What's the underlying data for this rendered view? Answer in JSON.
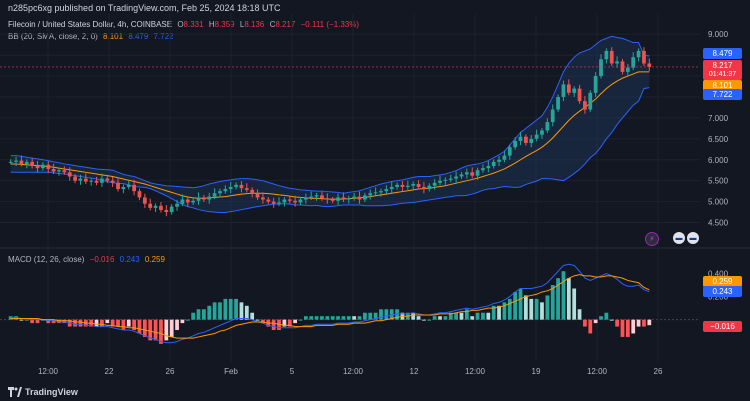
{
  "header": {
    "published": "n285pc6xg published on TradingView.com, Feb 25, 2024 18:18 UTC"
  },
  "symbol": {
    "name": "Filecoin / United States Dollar, 4h, COINBASE",
    "o_label": "O",
    "o_value": "8.331",
    "h_label": "H",
    "h_value": "8.359",
    "l_label": "L",
    "l_value": "8.136",
    "c_label": "C",
    "c_value": "8.217",
    "change": "−0.111 (−1.33%)"
  },
  "bb": {
    "label": "BB (20, SMA, close, 2, 0)",
    "basis": "8.101",
    "upper": "8.479",
    "lower": "7.722"
  },
  "macd": {
    "label": "MACD (12, 26, close)",
    "hist": "−0.016",
    "macd": "0.243",
    "signal": "0.259"
  },
  "price_tags": {
    "upper": "8.479",
    "close": "8.217",
    "countdown": "01:41:37",
    "basis": "8.101",
    "lower": "7.722"
  },
  "macd_tags": {
    "signal": "0.259",
    "macd": "0.243",
    "hist": "−0.016"
  },
  "footer": {
    "brand": "TradingView"
  },
  "colors": {
    "background": "#131722",
    "up": "#26a69a",
    "down": "#ef5350",
    "bb_upper": "#2962ff",
    "bb_basis": "#ff9800",
    "bb_fill": "#1e3a5f",
    "macd_line": "#2962ff",
    "signal_line": "#ff9800"
  },
  "icons": [
    "lightning-icon",
    "flag-icon-1",
    "flag-icon-2"
  ],
  "chart_data": [
    {
      "type": "candlestick",
      "title": "Filecoin / United States Dollar, 4h, COINBASE",
      "x_ticks": [
        "12:00",
        "22",
        "26",
        "Feb",
        "5",
        "12:00",
        "12",
        "12:00",
        "19",
        "12:00",
        "26"
      ],
      "y_ticks": [
        4.5,
        5.0,
        5.5,
        6.0,
        6.5,
        7.0,
        7.5,
        8.0,
        8.5,
        9.0
      ],
      "ylim": [
        4.25,
        9.1
      ],
      "close": [
        5.95,
        5.98,
        5.9,
        5.95,
        5.85,
        5.8,
        5.88,
        5.78,
        5.72,
        5.75,
        5.7,
        5.6,
        5.5,
        5.55,
        5.48,
        5.5,
        5.45,
        5.55,
        5.5,
        5.45,
        5.3,
        5.35,
        5.4,
        5.25,
        5.1,
        4.95,
        4.85,
        4.9,
        4.8,
        4.75,
        4.88,
        4.95,
        5.05,
        4.98,
        5.02,
        5.1,
        5.05,
        5.12,
        5.2,
        5.25,
        5.3,
        5.35,
        5.4,
        5.32,
        5.28,
        5.2,
        5.1,
        5.05,
        5.0,
        4.95,
        4.98,
        5.05,
        5.02,
        4.98,
        5.05,
        5.1,
        5.12,
        5.15,
        5.08,
        5.05,
        5.02,
        5.1,
        5.05,
        5.08,
        5.12,
        5.05,
        5.15,
        5.2,
        5.22,
        5.25,
        5.3,
        5.35,
        5.4,
        5.35,
        5.38,
        5.42,
        5.35,
        5.3,
        5.38,
        5.45,
        5.5,
        5.52,
        5.55,
        5.6,
        5.65,
        5.7,
        5.62,
        5.75,
        5.8,
        5.85,
        5.95,
        6.0,
        6.1,
        6.3,
        6.45,
        6.55,
        6.4,
        6.5,
        6.6,
        6.7,
        6.9,
        7.2,
        7.5,
        7.8,
        7.6,
        7.7,
        7.4,
        7.2,
        7.6,
        8.0,
        8.4,
        8.6,
        8.3,
        8.35,
        8.1,
        8.2,
        8.45,
        8.6,
        8.3,
        8.217
      ],
      "bb_upper": [
        6.1,
        6.1,
        6.08,
        6.06,
        6.04,
        6.02,
        6.0,
        5.98,
        5.95,
        5.93,
        5.9,
        5.88,
        5.86,
        5.84,
        5.82,
        5.8,
        5.78,
        5.77,
        5.76,
        5.75,
        5.7,
        5.65,
        5.62,
        5.6,
        5.55,
        5.5,
        5.45,
        5.42,
        5.4,
        5.38,
        5.37,
        5.36,
        5.35,
        5.34,
        5.33,
        5.35,
        5.38,
        5.42,
        5.45,
        5.48,
        5.5,
        5.52,
        5.54,
        5.55,
        5.55,
        5.54,
        5.52,
        5.5,
        5.46,
        5.42,
        5.38,
        5.35,
        5.32,
        5.3,
        5.28,
        5.27,
        5.26,
        5.25,
        5.25,
        5.24,
        5.23,
        5.22,
        5.2,
        5.22,
        5.24,
        5.26,
        5.3,
        5.34,
        5.38,
        5.42,
        5.45,
        5.48,
        5.5,
        5.52,
        5.55,
        5.58,
        5.6,
        5.6,
        5.6,
        5.62,
        5.64,
        5.66,
        5.7,
        5.74,
        5.8,
        5.85,
        5.88,
        5.9,
        5.93,
        5.98,
        6.05,
        6.12,
        6.2,
        6.35,
        6.5,
        6.65,
        6.75,
        6.85,
        6.95,
        7.05,
        7.25,
        7.5,
        7.8,
        8.1,
        8.3,
        8.45,
        8.55,
        8.6,
        8.65,
        8.75,
        8.85,
        8.9,
        8.95,
        8.92,
        8.9,
        8.85,
        8.8,
        8.8,
        8.5,
        8.479
      ],
      "bb_basis": [
        5.9,
        5.9,
        5.89,
        5.88,
        5.87,
        5.86,
        5.85,
        5.84,
        5.82,
        5.8,
        5.78,
        5.76,
        5.74,
        5.72,
        5.7,
        5.68,
        5.66,
        5.64,
        5.62,
        5.6,
        5.57,
        5.54,
        5.51,
        5.48,
        5.45,
        5.42,
        5.38,
        5.34,
        5.3,
        5.26,
        5.22,
        5.18,
        5.14,
        5.11,
        5.09,
        5.08,
        5.08,
        5.09,
        5.1,
        5.11,
        5.12,
        5.14,
        5.16,
        5.18,
        5.19,
        5.2,
        5.2,
        5.2,
        5.19,
        5.18,
        5.16,
        5.15,
        5.13,
        5.11,
        5.1,
        5.09,
        5.08,
        5.08,
        5.07,
        5.06,
        5.06,
        5.06,
        5.06,
        5.07,
        5.08,
        5.09,
        5.1,
        5.12,
        5.14,
        5.16,
        5.18,
        5.2,
        5.22,
        5.24,
        5.26,
        5.28,
        5.3,
        5.31,
        5.32,
        5.34,
        5.36,
        5.38,
        5.41,
        5.44,
        5.47,
        5.5,
        5.53,
        5.56,
        5.6,
        5.64,
        5.68,
        5.73,
        5.78,
        5.85,
        5.92,
        6.0,
        6.08,
        6.15,
        6.22,
        6.3,
        6.4,
        6.52,
        6.66,
        6.8,
        6.94,
        7.06,
        7.16,
        7.25,
        7.35,
        7.45,
        7.58,
        7.7,
        7.8,
        7.88,
        7.95,
        8.0,
        8.05,
        8.1,
        8.1,
        8.101
      ],
      "bb_lower": [
        5.7,
        5.7,
        5.7,
        5.7,
        5.7,
        5.7,
        5.7,
        5.7,
        5.69,
        5.67,
        5.66,
        5.64,
        5.62,
        5.6,
        5.58,
        5.56,
        5.54,
        5.51,
        5.48,
        5.45,
        5.44,
        5.43,
        5.4,
        5.36,
        5.35,
        5.34,
        5.31,
        5.26,
        5.2,
        5.14,
        5.07,
        5.0,
        4.93,
        4.88,
        4.85,
        4.81,
        4.78,
        4.76,
        4.75,
        4.74,
        4.74,
        4.76,
        4.78,
        4.81,
        4.83,
        4.86,
        4.88,
        4.9,
        4.92,
        4.94,
        4.94,
        4.95,
        4.94,
        4.92,
        4.92,
        4.91,
        4.9,
        4.91,
        4.89,
        4.88,
        4.89,
        4.9,
        4.92,
        4.92,
        4.92,
        4.92,
        4.9,
        4.9,
        4.9,
        4.9,
        4.91,
        4.92,
        4.94,
        4.96,
        4.97,
        4.98,
        5.0,
        5.02,
        5.04,
        5.06,
        5.08,
        5.1,
        5.12,
        5.14,
        5.14,
        5.15,
        5.18,
        5.22,
        5.27,
        5.3,
        5.31,
        5.34,
        5.36,
        5.35,
        5.34,
        5.35,
        5.41,
        5.45,
        5.49,
        5.55,
        5.55,
        5.54,
        5.52,
        5.5,
        5.58,
        5.67,
        5.77,
        5.9,
        6.05,
        6.15,
        6.31,
        6.5,
        6.65,
        6.84,
        7.0,
        7.15,
        7.3,
        7.4,
        7.7,
        7.722
      ]
    },
    {
      "type": "macd",
      "title": "MACD (12, 26, close)",
      "y_ticks": [
        0.2,
        0.4
      ],
      "ylim": [
        -0.35,
        0.5
      ],
      "macd": [
        0.02,
        0.02,
        0.01,
        0.01,
        0.0,
        0.0,
        0.0,
        -0.01,
        -0.01,
        -0.02,
        -0.02,
        -0.03,
        -0.04,
        -0.04,
        -0.05,
        -0.05,
        -0.06,
        -0.06,
        -0.06,
        -0.07,
        -0.08,
        -0.09,
        -0.09,
        -0.1,
        -0.12,
        -0.14,
        -0.16,
        -0.17,
        -0.19,
        -0.2,
        -0.2,
        -0.19,
        -0.17,
        -0.16,
        -0.14,
        -0.12,
        -0.11,
        -0.09,
        -0.07,
        -0.05,
        -0.03,
        -0.01,
        0.01,
        0.01,
        0.01,
        0.0,
        -0.02,
        -0.03,
        -0.05,
        -0.06,
        -0.07,
        -0.07,
        -0.07,
        -0.07,
        -0.06,
        -0.05,
        -0.05,
        -0.04,
        -0.04,
        -0.04,
        -0.04,
        -0.03,
        -0.03,
        -0.03,
        -0.02,
        -0.02,
        -0.01,
        0.0,
        0.01,
        0.02,
        0.03,
        0.04,
        0.05,
        0.05,
        0.05,
        0.06,
        0.05,
        0.04,
        0.04,
        0.05,
        0.06,
        0.06,
        0.07,
        0.08,
        0.09,
        0.1,
        0.09,
        0.1,
        0.11,
        0.12,
        0.14,
        0.15,
        0.17,
        0.2,
        0.24,
        0.27,
        0.27,
        0.27,
        0.28,
        0.29,
        0.32,
        0.37,
        0.42,
        0.47,
        0.48,
        0.47,
        0.42,
        0.36,
        0.34,
        0.36,
        0.38,
        0.4,
        0.38,
        0.35,
        0.31,
        0.29,
        0.29,
        0.3,
        0.26,
        0.243
      ],
      "signal": [
        0.01,
        0.01,
        0.01,
        0.01,
        0.01,
        0.01,
        0.0,
        0.0,
        0.0,
        -0.01,
        -0.01,
        -0.01,
        -0.02,
        -0.02,
        -0.03,
        -0.03,
        -0.04,
        -0.04,
        -0.05,
        -0.05,
        -0.06,
        -0.06,
        -0.07,
        -0.07,
        -0.08,
        -0.09,
        -0.1,
        -0.11,
        -0.12,
        -0.14,
        -0.15,
        -0.16,
        -0.16,
        -0.16,
        -0.16,
        -0.15,
        -0.14,
        -0.13,
        -0.12,
        -0.1,
        -0.09,
        -0.07,
        -0.05,
        -0.04,
        -0.03,
        -0.02,
        -0.02,
        -0.02,
        -0.03,
        -0.03,
        -0.04,
        -0.05,
        -0.05,
        -0.06,
        -0.06,
        -0.06,
        -0.06,
        -0.05,
        -0.05,
        -0.05,
        -0.05,
        -0.04,
        -0.04,
        -0.04,
        -0.03,
        -0.03,
        -0.03,
        -0.02,
        -0.01,
        -0.01,
        0.0,
        0.01,
        0.02,
        0.03,
        0.03,
        0.04,
        0.04,
        0.04,
        0.04,
        0.04,
        0.05,
        0.05,
        0.05,
        0.06,
        0.07,
        0.07,
        0.08,
        0.08,
        0.09,
        0.1,
        0.1,
        0.11,
        0.12,
        0.14,
        0.16,
        0.18,
        0.2,
        0.21,
        0.22,
        0.24,
        0.25,
        0.27,
        0.3,
        0.33,
        0.36,
        0.38,
        0.39,
        0.38,
        0.38,
        0.37,
        0.37,
        0.38,
        0.38,
        0.37,
        0.36,
        0.34,
        0.33,
        0.32,
        0.28,
        0.259
      ]
    }
  ]
}
